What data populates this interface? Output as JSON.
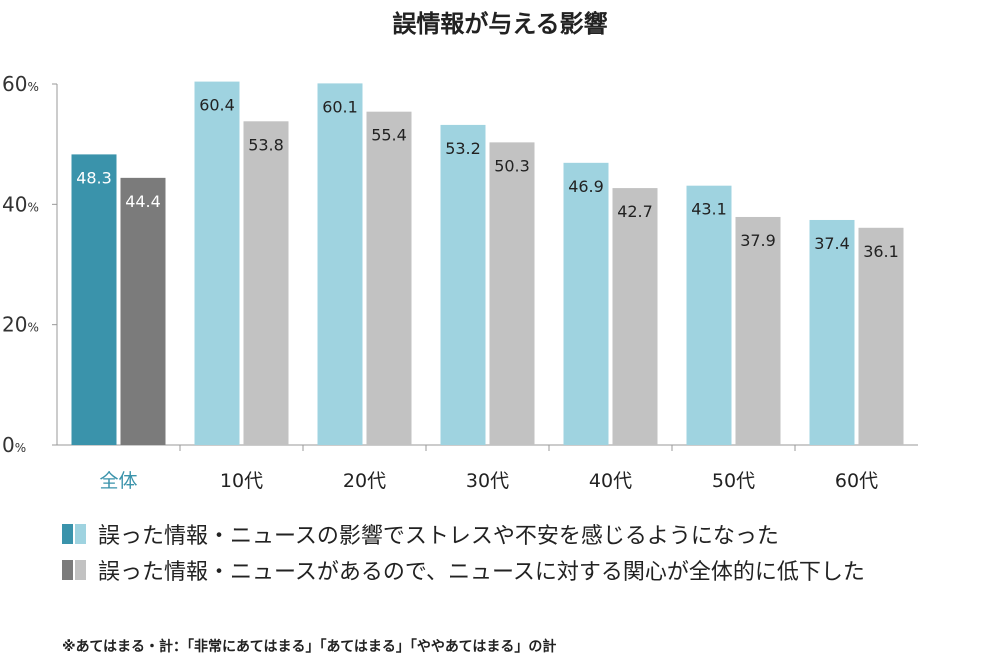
{
  "chart_data": {
    "type": "bar",
    "title": "誤情報が与える影響",
    "categories": [
      "全体",
      "10代",
      "20代",
      "30代",
      "40代",
      "50代",
      "60代"
    ],
    "series": [
      {
        "name": "誤った情報・ニュースの影響でストレスや不安を感じるようになった",
        "values": [
          48.3,
          60.4,
          60.1,
          53.2,
          46.9,
          43.1,
          37.4
        ]
      },
      {
        "name": "誤った情報・ニュースがあるので、ニュースに対する関心が全体的に低下した",
        "values": [
          44.4,
          53.8,
          55.4,
          50.3,
          42.7,
          37.9,
          36.1
        ]
      }
    ],
    "y_ticks": [
      0,
      20,
      40,
      60
    ],
    "y_unit": "%",
    "ylim": [
      0,
      60
    ],
    "grid": false,
    "legend_position": "bottom",
    "footnote": "※あてはまる・計：「非常にあてはまる」「あてはまる」「ややあてはまる」の計"
  },
  "colors": {
    "series1_highlight": "#3a93ab",
    "series1": "#9fd3e0",
    "series2_highlight": "#7b7b7b",
    "series2": "#c2c2c2",
    "highlight_label": "#3a93ab",
    "axis": "#999999"
  }
}
